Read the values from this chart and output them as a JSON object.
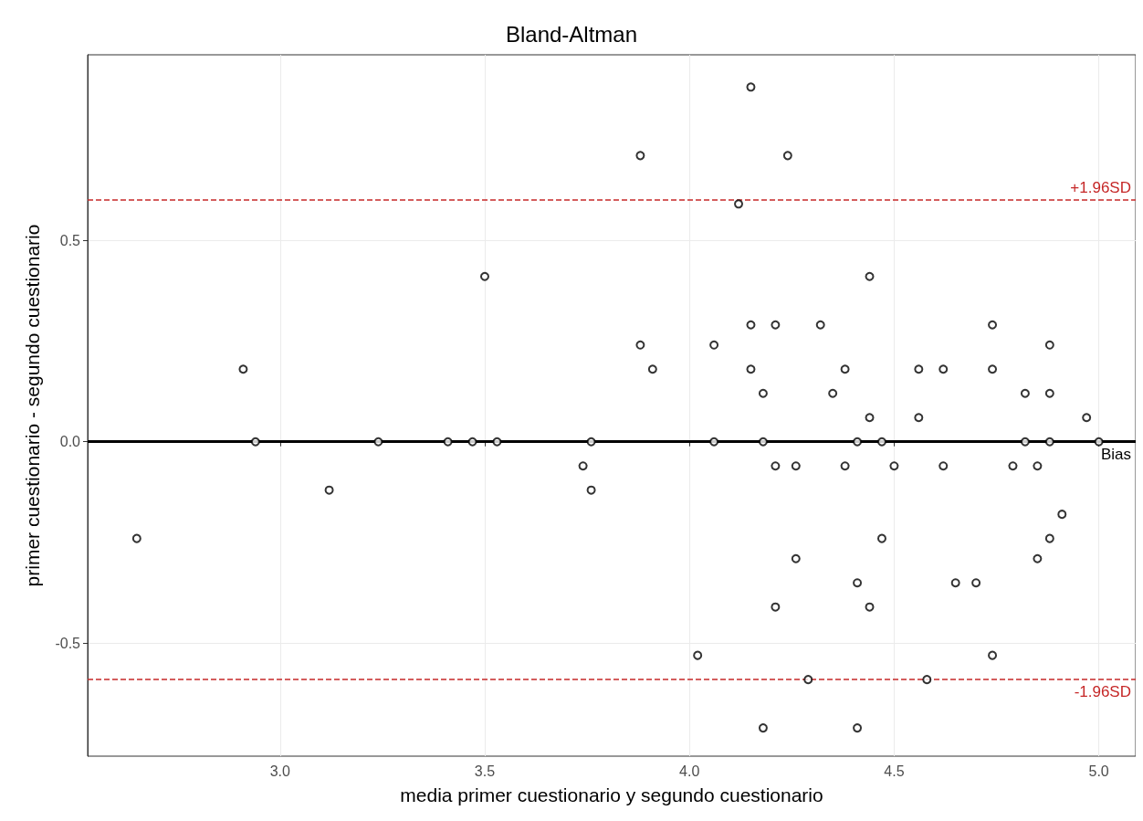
{
  "chart_data": {
    "type": "scatter",
    "title": "Bland-Altman",
    "xlabel": "media primer cuestionario y segundo cuestionario",
    "ylabel": "primer cuestionario - segundo cuestionario",
    "x": [
      2.65,
      2.91,
      2.94,
      3.12,
      3.24,
      3.41,
      3.47,
      3.53,
      3.5,
      3.74,
      3.76,
      3.76,
      3.88,
      3.88,
      3.91,
      4.02,
      4.06,
      4.06,
      4.12,
      4.15,
      4.15,
      4.15,
      4.18,
      4.18,
      4.18,
      4.21,
      4.21,
      4.21,
      4.24,
      4.26,
      4.26,
      4.29,
      4.32,
      4.35,
      4.38,
      4.38,
      4.41,
      4.41,
      4.41,
      4.44,
      4.44,
      4.44,
      4.47,
      4.47,
      4.5,
      4.56,
      4.56,
      4.58,
      4.62,
      4.62,
      4.65,
      4.7,
      4.74,
      4.74,
      4.74,
      4.79,
      4.82,
      4.82,
      4.85,
      4.85,
      4.88,
      4.88,
      4.88,
      4.88,
      4.91,
      4.97,
      5.0
    ],
    "values": [
      -0.24,
      0.18,
      0,
      -0.12,
      0,
      0,
      0,
      0,
      0.41,
      -0.06,
      0,
      -0.12,
      0.71,
      0.24,
      0.18,
      -0.53,
      0.24,
      0,
      0.59,
      0.88,
      0.29,
      0.18,
      0.12,
      0,
      -0.71,
      0.29,
      -0.06,
      -0.41,
      0.71,
      -0.06,
      -0.29,
      -0.59,
      0.29,
      0.12,
      0.18,
      -0.06,
      0,
      -0.35,
      -0.71,
      0.41,
      0.06,
      -0.41,
      0,
      -0.24,
      -0.06,
      0.18,
      0.06,
      -0.59,
      0.18,
      -0.06,
      -0.35,
      -0.35,
      0.29,
      0.18,
      -0.53,
      -0.06,
      0.12,
      0,
      -0.06,
      -0.29,
      0.24,
      0.12,
      0,
      -0.24,
      -0.18,
      0.06,
      0
    ],
    "color": "#000000",
    "marker": "circle",
    "xlim": [
      2.53,
      5.09
    ],
    "ylim": [
      -0.78,
      0.96
    ],
    "xticks": [
      {
        "value": 3,
        "label": "3.0"
      },
      3.5,
      {
        "value": 4,
        "label": "4.0"
      },
      4.5,
      {
        "value": 5,
        "label": "5.0"
      }
    ],
    "yticks": [
      -0.5,
      {
        "value": 0,
        "label": "0.0"
      },
      0.5
    ],
    "grid": true,
    "ref_lines": [
      {
        "axis": "y",
        "value": 0,
        "label": "Bias",
        "color": "#000000",
        "line_style": "solid"
      },
      {
        "axis": "y",
        "value": 0.6,
        "label": "+1.96SD",
        "color": "#c62828",
        "line_style": "dashed"
      },
      {
        "axis": "y",
        "value": -0.59,
        "label": "-1.96SD",
        "color": "#c62828",
        "line_style": "dashed"
      }
    ]
  }
}
